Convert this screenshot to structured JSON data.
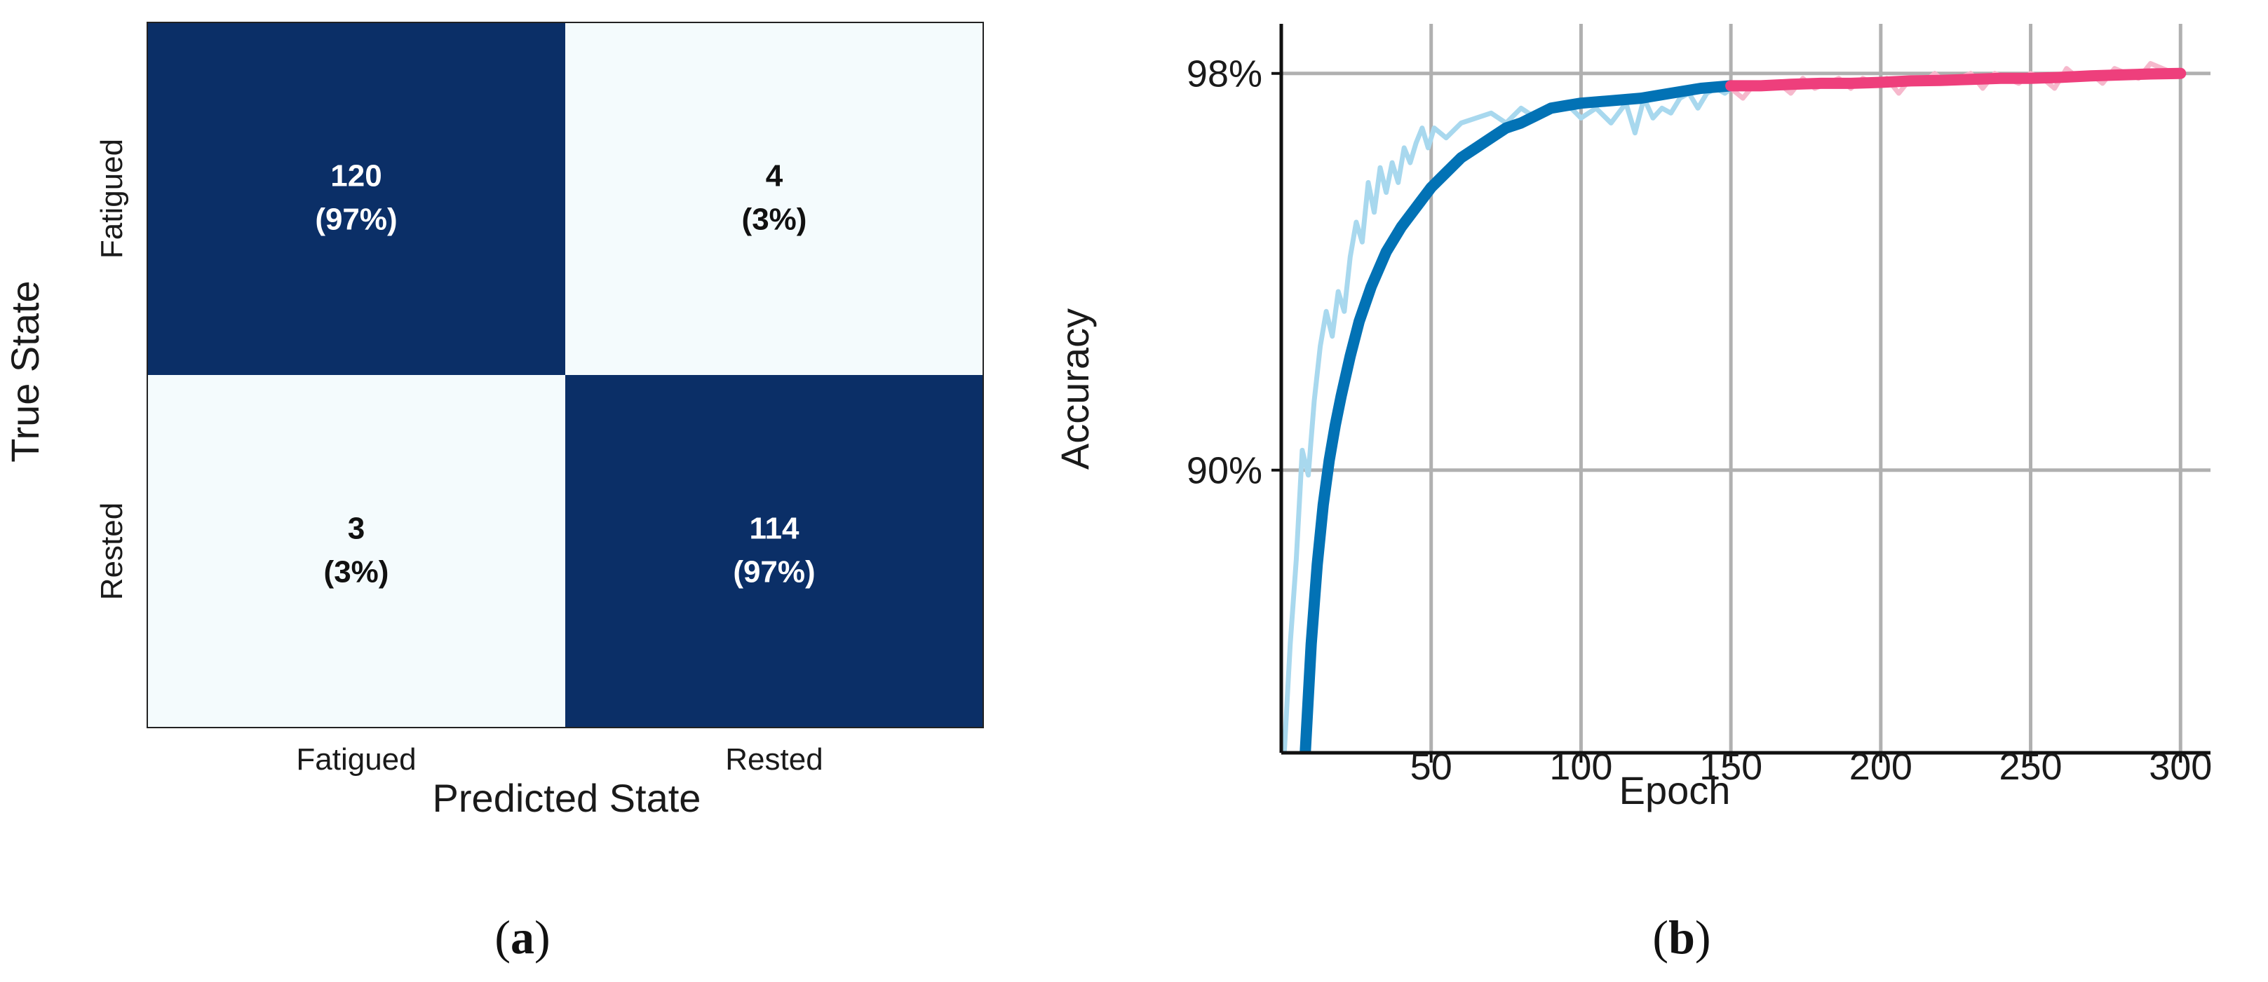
{
  "panel_labels": {
    "a": "a",
    "b": "b"
  },
  "colors": {
    "dark": "#0b2f67",
    "light": "#f4fbfd",
    "train_raw": "#a8d8ee",
    "train_smooth": "#0272b5",
    "val_raw": "#f6b8cc",
    "val_smooth": "#ee3f7c",
    "grid": "#b0b0b0"
  },
  "chart_data": [
    {
      "type": "heatmap",
      "title": "",
      "xlabel": "Predicted State",
      "ylabel": "True State",
      "x_categories": [
        "Fatigued",
        "Rested"
      ],
      "y_categories": [
        "Fatigued",
        "Rested"
      ],
      "values": [
        [
          120,
          4
        ],
        [
          3,
          114
        ]
      ],
      "percent_labels": [
        [
          "(97%)",
          "(3%)"
        ],
        [
          "(3%)",
          "(97%)"
        ]
      ],
      "value_labels": [
        [
          "120",
          "4"
        ],
        [
          "3",
          "114"
        ]
      ]
    },
    {
      "type": "line",
      "title": "",
      "xlabel": "Epoch",
      "ylabel": "Accuracy",
      "xlim": [
        0,
        310
      ],
      "ylim": [
        84.3,
        99
      ],
      "xticks": [
        50,
        100,
        150,
        200,
        250,
        300
      ],
      "xtick_labels": [
        "50",
        "100",
        "150",
        "200",
        "250",
        "300"
      ],
      "yticks": [
        90,
        98
      ],
      "ytick_labels": [
        "90%",
        "98%"
      ],
      "grid": true,
      "series": [
        {
          "x": [
            1,
            3,
            5,
            7,
            9,
            11,
            13,
            15,
            17,
            19,
            21,
            23,
            25,
            27,
            29,
            31,
            33,
            35,
            37,
            39,
            41,
            43,
            45,
            47,
            49,
            51,
            55,
            60,
            65,
            70,
            75,
            80,
            85,
            90,
            95,
            100,
            105,
            110,
            115,
            118,
            121,
            124,
            127,
            130,
            133,
            136,
            139,
            142,
            145,
            148,
            150
          ],
          "y": [
            84.3,
            86.5,
            88.2,
            90.4,
            89.9,
            91.4,
            92.5,
            93.2,
            92.7,
            93.6,
            93.2,
            94.3,
            95.0,
            94.6,
            95.8,
            95.2,
            96.1,
            95.6,
            96.2,
            95.8,
            96.5,
            96.2,
            96.6,
            96.9,
            96.5,
            96.9,
            96.7,
            97.0,
            97.1,
            97.2,
            97.0,
            97.3,
            97.1,
            97.3,
            97.4,
            97.1,
            97.3,
            97.0,
            97.4,
            96.8,
            97.5,
            97.1,
            97.3,
            97.2,
            97.5,
            97.6,
            97.3,
            97.6,
            97.7,
            97.6,
            97.7
          ]
        },
        {
          "x": [
            8,
            10,
            12,
            14,
            16,
            18,
            20,
            23,
            26,
            30,
            35,
            40,
            45,
            50,
            55,
            60,
            65,
            70,
            75,
            80,
            85,
            90,
            95,
            100,
            110,
            120,
            130,
            140,
            150
          ],
          "y": [
            84.3,
            86.5,
            88.1,
            89.3,
            90.2,
            90.9,
            91.5,
            92.3,
            93.0,
            93.7,
            94.4,
            94.9,
            95.3,
            95.7,
            96.0,
            96.3,
            96.5,
            96.7,
            96.9,
            97.0,
            97.15,
            97.3,
            97.35,
            97.4,
            97.45,
            97.5,
            97.6,
            97.7,
            97.75
          ]
        },
        {
          "x": [
            150,
            154,
            158,
            162,
            166,
            170,
            174,
            178,
            182,
            186,
            190,
            194,
            198,
            202,
            206,
            210,
            214,
            218,
            222,
            226,
            230,
            234,
            238,
            242,
            246,
            250,
            254,
            258,
            262,
            266,
            270,
            274,
            278,
            282,
            286,
            290,
            294,
            298,
            301
          ],
          "y": [
            97.7,
            97.5,
            97.8,
            97.7,
            97.8,
            97.6,
            97.9,
            97.7,
            97.8,
            97.9,
            97.7,
            97.9,
            97.8,
            97.9,
            97.6,
            97.9,
            97.8,
            98.0,
            97.8,
            97.9,
            98.0,
            97.7,
            98.0,
            97.9,
            97.8,
            98.0,
            97.9,
            97.7,
            98.1,
            97.9,
            98.0,
            97.8,
            98.1,
            98.0,
            97.9,
            98.2,
            98.1,
            98.0,
            98.0
          ]
        },
        {
          "x": [
            150,
            160,
            170,
            180,
            190,
            200,
            210,
            220,
            230,
            240,
            250,
            260,
            270,
            280,
            290,
            300
          ],
          "y": [
            97.75,
            97.75,
            97.78,
            97.8,
            97.8,
            97.82,
            97.85,
            97.86,
            97.88,
            97.9,
            97.9,
            97.92,
            97.95,
            97.97,
            97.99,
            98.0
          ]
        }
      ]
    }
  ]
}
